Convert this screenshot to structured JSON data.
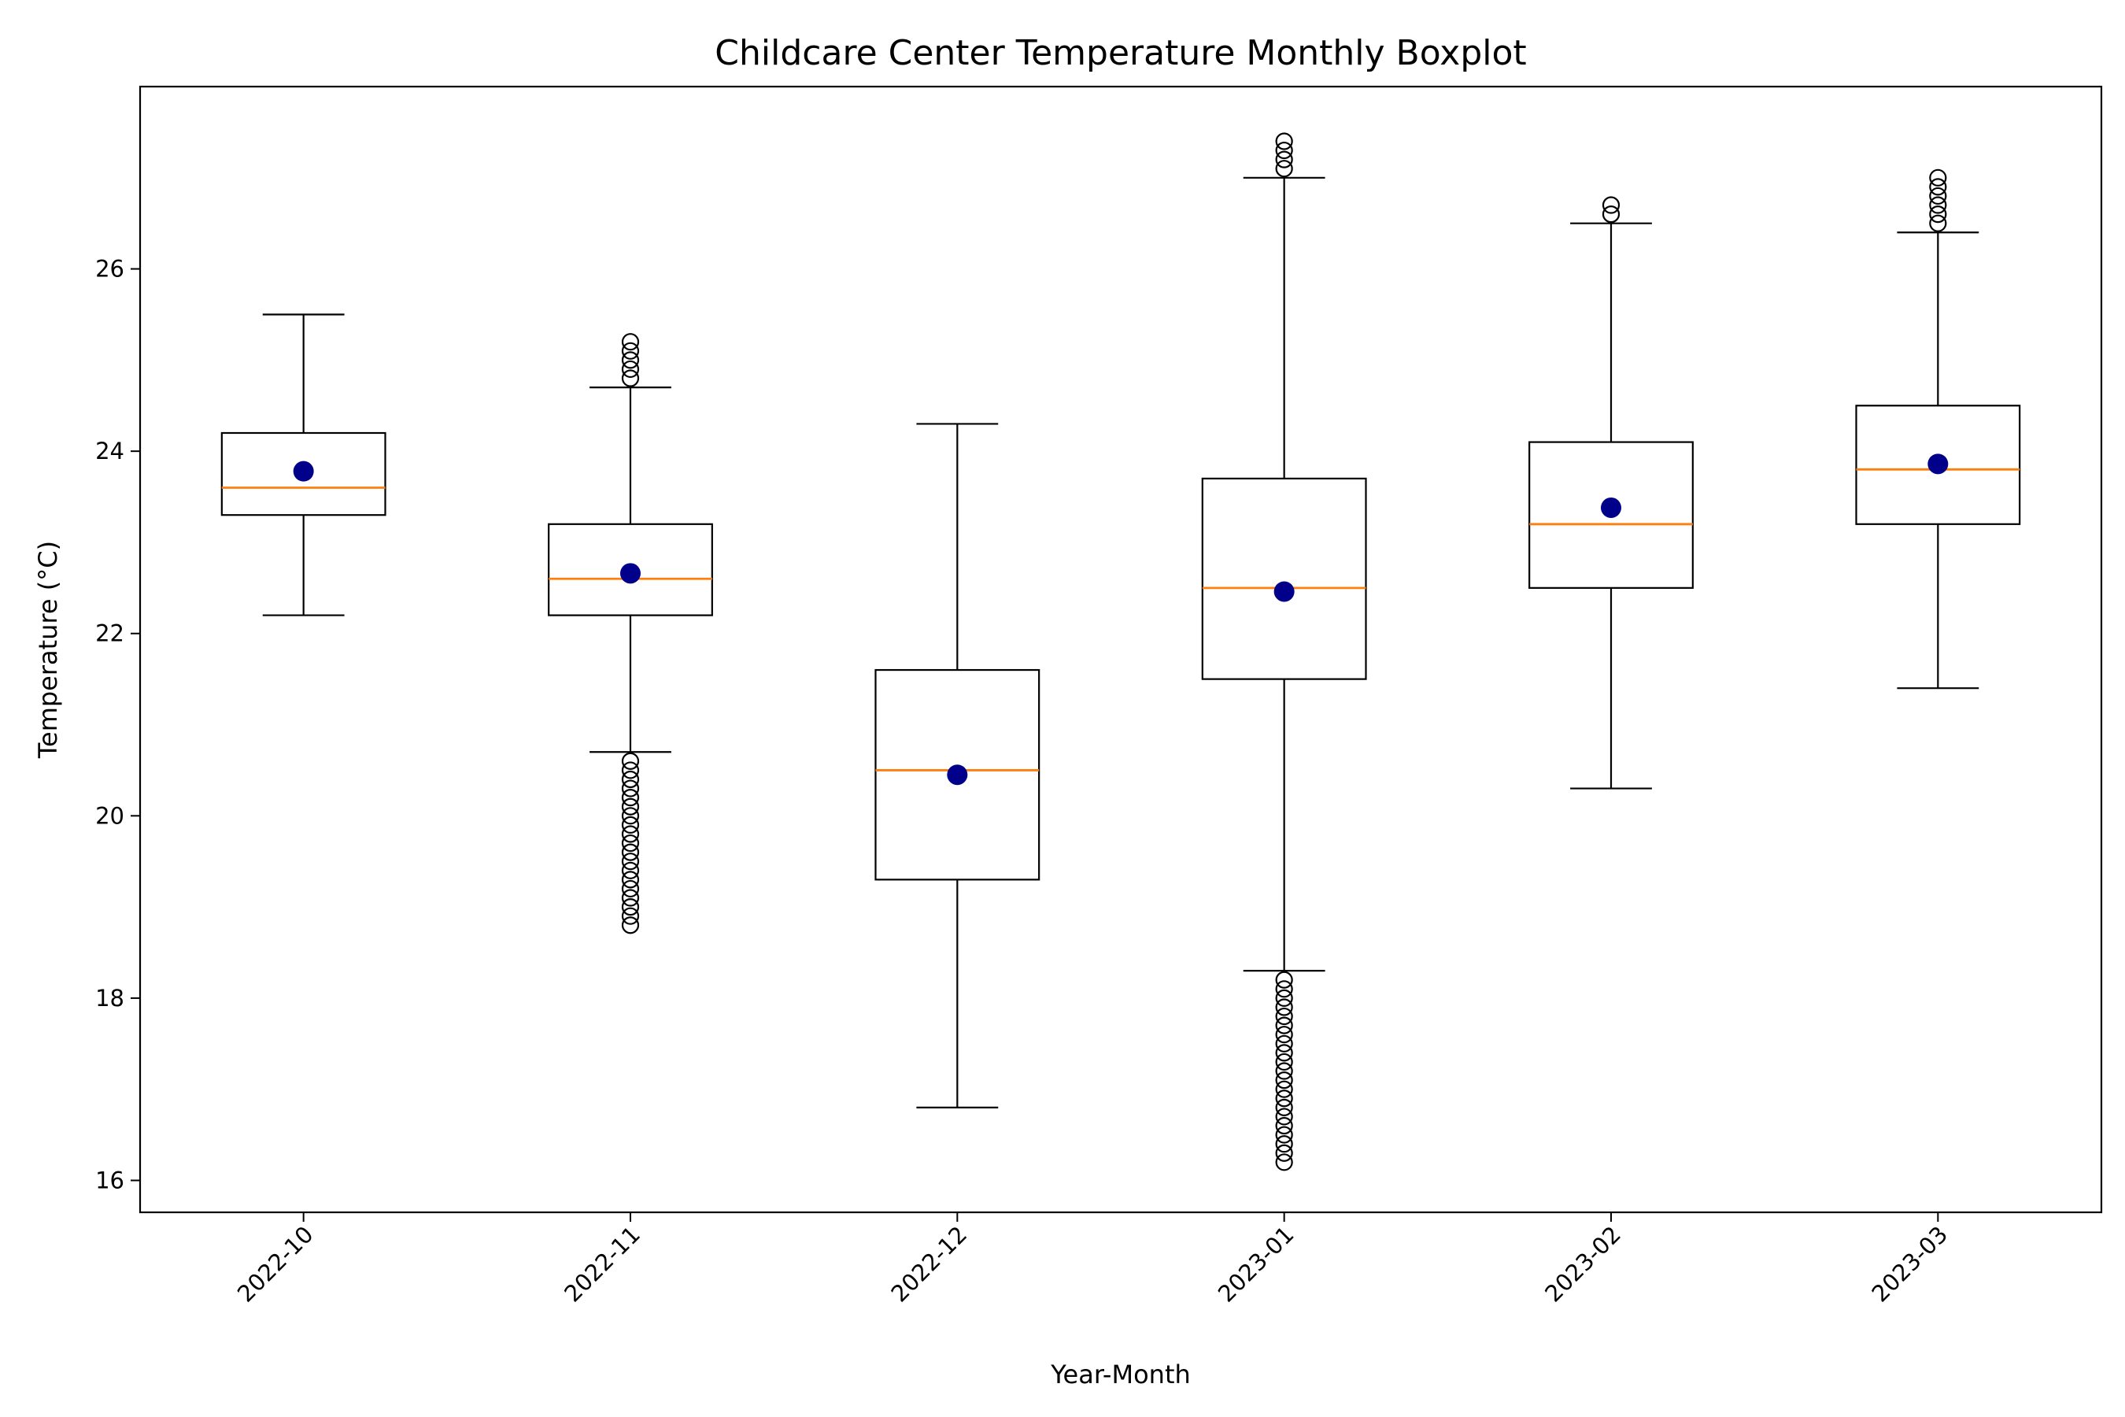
{
  "chart_data": {
    "type": "boxplot",
    "title": "Childcare Center Temperature Monthly Boxplot",
    "xlabel": "Year-Month",
    "ylabel": "Temperature (°C)",
    "ylim": [
      15.65,
      28.0
    ],
    "yticks": [
      16,
      18,
      20,
      22,
      24,
      26
    ],
    "grid": false,
    "colors": {
      "box": "#000000",
      "median": "#ff7f0e",
      "mean": "#00008b",
      "flier": "#000000"
    },
    "categories": [
      "2022-10",
      "2022-11",
      "2022-12",
      "2023-01",
      "2023-02",
      "2023-03"
    ],
    "boxes": [
      {
        "label": "2022-10",
        "whisker_low": 22.2,
        "q1": 23.3,
        "median": 23.6,
        "q3": 24.2,
        "whisker_high": 25.5,
        "mean": 23.78,
        "fliers": []
      },
      {
        "label": "2022-11",
        "whisker_low": 20.7,
        "q1": 22.2,
        "median": 22.6,
        "q3": 23.2,
        "whisker_high": 24.7,
        "mean": 22.66,
        "fliers": [
          24.8,
          24.9,
          25.0,
          25.1,
          25.2,
          18.8,
          18.9,
          19.0,
          19.1,
          19.2,
          19.3,
          19.4,
          19.5,
          19.6,
          19.7,
          19.8,
          19.9,
          20.0,
          20.1,
          20.2,
          20.3,
          20.4,
          20.5,
          20.6
        ]
      },
      {
        "label": "2022-12",
        "whisker_low": 16.8,
        "q1": 19.3,
        "median": 20.5,
        "q3": 21.6,
        "whisker_high": 24.3,
        "mean": 20.45,
        "fliers": []
      },
      {
        "label": "2023-01",
        "whisker_low": 18.3,
        "q1": 21.5,
        "median": 22.5,
        "q3": 23.7,
        "whisker_high": 27.0,
        "mean": 22.46,
        "fliers": [
          27.1,
          27.2,
          27.3,
          27.4,
          16.2,
          16.3,
          16.4,
          16.5,
          16.6,
          16.7,
          16.8,
          16.9,
          17.0,
          17.1,
          17.2,
          17.3,
          17.4,
          17.5,
          17.6,
          17.7,
          17.8,
          17.9,
          18.0,
          18.1,
          18.2
        ]
      },
      {
        "label": "2023-02",
        "whisker_low": 20.3,
        "q1": 22.5,
        "median": 23.2,
        "q3": 24.1,
        "whisker_high": 26.5,
        "mean": 23.38,
        "fliers": [
          26.6,
          26.7
        ]
      },
      {
        "label": "2023-03",
        "whisker_low": 21.4,
        "q1": 23.2,
        "median": 23.8,
        "q3": 24.5,
        "whisker_high": 26.4,
        "mean": 23.86,
        "fliers": [
          26.5,
          26.6,
          26.7,
          26.8,
          26.9,
          27.0
        ]
      }
    ]
  }
}
